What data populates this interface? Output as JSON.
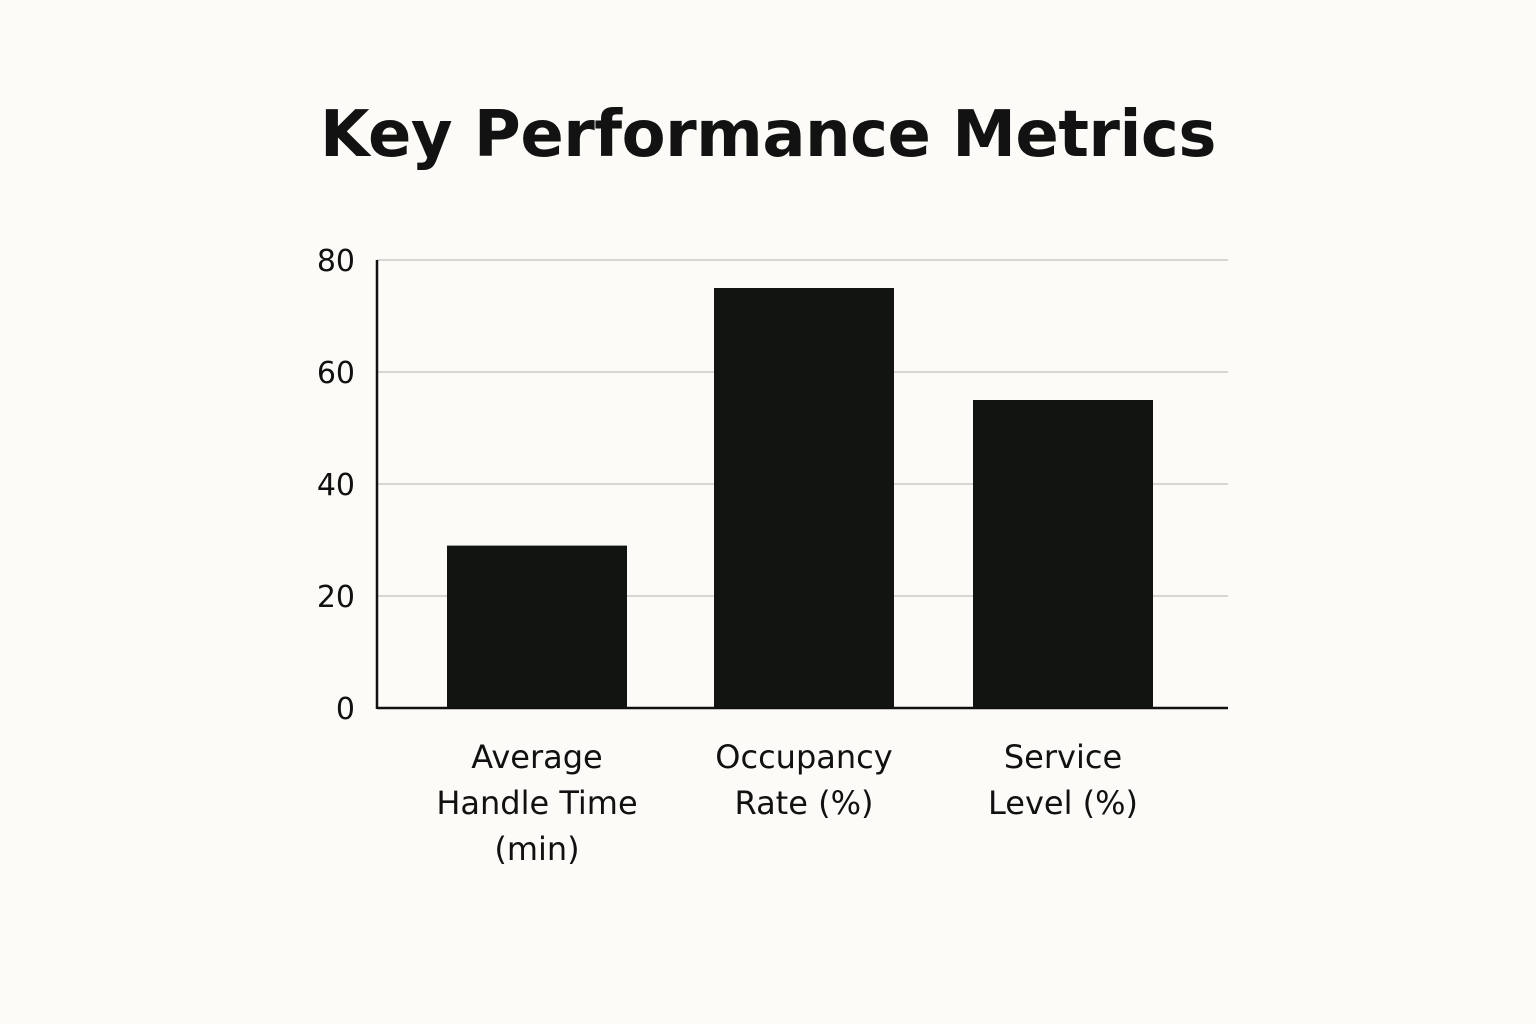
{
  "chart_data": {
    "type": "bar",
    "title": "Key Performance Metrics",
    "xlabel": "",
    "ylabel": "",
    "categories": [
      [
        "Average",
        "Handle Time",
        "(min)"
      ],
      [
        "Occupancy",
        "Rate (%)"
      ],
      [
        "Service",
        "Level (%)"
      ]
    ],
    "values": [
      29,
      75,
      55
    ],
    "ylim": [
      0,
      80
    ],
    "yticks": [
      0,
      20,
      40,
      60,
      80
    ],
    "grid": true,
    "legend": "none",
    "colors": {
      "bar": "#121412",
      "grid": "#d8d6d2",
      "axis": "#111111",
      "background": "#fcfbf8"
    }
  }
}
